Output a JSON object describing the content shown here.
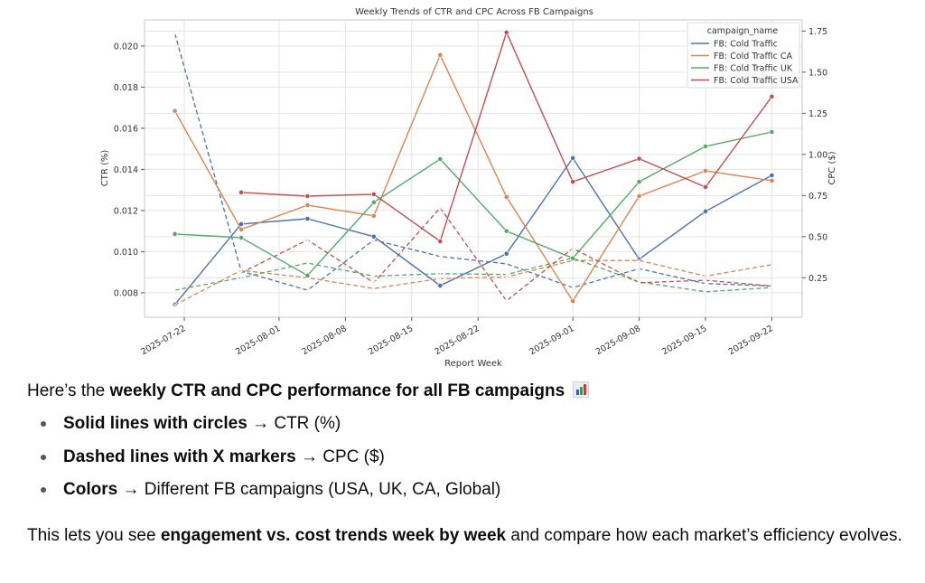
{
  "chart_data": {
    "type": "line",
    "title": "Weekly Trends of CTR and CPC Across FB Campaigns",
    "xlabel": "Report Week",
    "ylabel": "CTR (%)",
    "ylabel_right": "CPC ($)",
    "x": [
      "2025-07-21",
      "2025-07-28",
      "2025-08-04",
      "2025-08-11",
      "2025-08-18",
      "2025-08-25",
      "2025-09-01",
      "2025-09-08",
      "2025-09-15",
      "2025-09-22"
    ],
    "x_tick_labels": [
      "2025-07-22",
      "2025-08-01",
      "2025-08-08",
      "2025-08-15",
      "2025-08-22",
      "2025-09-01",
      "2025-09-08",
      "2025-09-15",
      "2025-09-22"
    ],
    "y_ticks_left": [
      "0.008",
      "0.010",
      "0.012",
      "0.014",
      "0.016",
      "0.018",
      "0.020"
    ],
    "y_ticks_right": [
      "0.25",
      "0.50",
      "0.75",
      "1.00",
      "1.25",
      "1.50",
      "1.75"
    ],
    "ylim_left": [
      0.00681,
      0.02127
    ],
    "ylim_right": [
      0.01,
      1.818
    ],
    "grid": true,
    "legend": {
      "title": "campaign_name",
      "placement": "top-right"
    },
    "series": [
      {
        "name": "FB: Cold Traffic",
        "color": "#4c72b0",
        "ctr": [
          0.00743,
          0.01134,
          0.0116,
          0.01073,
          0.00835,
          0.0099,
          0.01455,
          0.00963,
          0.01196,
          0.01371
        ],
        "cpc": [
          1.735,
          0.29,
          0.175,
          0.48,
          0.38,
          0.335,
          0.19,
          0.305,
          0.215,
          0.2
        ]
      },
      {
        "name": "FB: Cold Traffic CA",
        "color": "#dd8452",
        "ctr": [
          0.01684,
          0.01108,
          0.01226,
          0.01174,
          0.01956,
          0.01266,
          0.0076,
          0.0127,
          0.01393,
          0.01345
        ],
        "cpc": [
          0.085,
          0.295,
          0.25,
          0.185,
          0.245,
          0.255,
          0.355,
          0.355,
          0.26,
          0.33
        ]
      },
      {
        "name": "FB: Cold Traffic UK",
        "color": "#55a868",
        "ctr": [
          0.01086,
          0.01068,
          0.00884,
          0.0124,
          0.0145,
          0.011,
          0.00968,
          0.0134,
          0.01512,
          0.01582
        ],
        "cpc": [
          0.175,
          0.25,
          0.34,
          0.26,
          0.275,
          0.27,
          0.37,
          0.225,
          0.165,
          0.19
        ]
      },
      {
        "name": "FB: Cold Traffic USA",
        "color": "#c44e52",
        "ctr": [
          null,
          0.01288,
          0.0127,
          0.01279,
          0.0105,
          0.02066,
          0.0134,
          0.01452,
          0.01314,
          0.01754
        ],
        "cpc": [
          null,
          0.28,
          0.48,
          0.22,
          0.675,
          0.11,
          0.43,
          0.22,
          0.235,
          0.2
        ]
      }
    ]
  },
  "text": {
    "intro_prefix": "Here’s the ",
    "intro_bold": "weekly CTR and CPC performance for all FB campaigns",
    "bullets": [
      {
        "bold": "Solid lines with circles",
        "rest": " → CTR (%)"
      },
      {
        "bold": "Dashed lines with X markers",
        "rest": " → CPC ($)"
      },
      {
        "bold": "Colors",
        "rest": " → Different FB campaigns (USA, UK, CA, Global)"
      }
    ],
    "summary_prefix": "This lets you see ",
    "summary_bold": "engagement vs. cost trends week by week",
    "summary_rest": " and compare how each market’s efficiency evolves."
  }
}
